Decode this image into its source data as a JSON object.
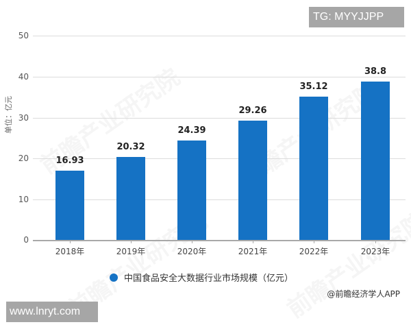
{
  "chart_data": {
    "type": "bar",
    "title": "",
    "categories": [
      "2018年",
      "2019年",
      "2020年",
      "2021年",
      "2022年",
      "2023年"
    ],
    "values": [
      16.93,
      20.32,
      24.39,
      29.26,
      35.12,
      38.8
    ],
    "value_labels": [
      "16.93",
      "20.32",
      "24.39",
      "29.26",
      "35.12",
      "38.8"
    ],
    "series": [
      {
        "name": "中国食品安全大数据行业市场规模（亿元）",
        "values": [
          16.93,
          20.32,
          24.39,
          29.26,
          35.12,
          38.8
        ],
        "color": "#1572c4"
      }
    ],
    "xlabel": "",
    "ylabel": "单位：亿元",
    "ylim": [
      0,
      50
    ],
    "yticks": [
      "0",
      "10",
      "20",
      "30",
      "40",
      "50"
    ],
    "grid": true,
    "legend_position": "bottom"
  },
  "legend": {
    "label": "中国食品安全大数据行业市场规模（亿元）"
  },
  "source": "@前瞻经济学人APP",
  "overlays": {
    "top_tag": "TG: MYYJJPP",
    "bottom_tag": "www.lnryt.com"
  },
  "watermark": "前瞻产业研究院"
}
